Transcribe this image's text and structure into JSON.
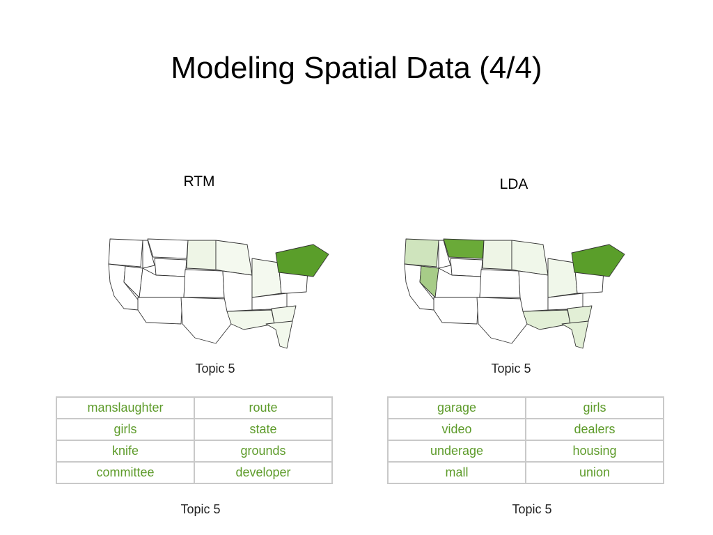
{
  "slide": {
    "title": "Modeling Spatial Data (4/4)"
  },
  "panels": [
    {
      "label": "RTM",
      "map_caption": "Topic 5",
      "table_caption": "Topic 5",
      "words": [
        [
          "manslaughter",
          "route"
        ],
        [
          "girls",
          "state"
        ],
        [
          "knife",
          "grounds"
        ],
        [
          "committee",
          "developer"
        ]
      ],
      "shading": {
        "northeast": "#5a9e2a",
        "pacific_nw": "#ffffff",
        "mountain_n": "#ffffff",
        "dakotas": "#eef5e6",
        "nevada": "#ffffff",
        "southeast": "#f2f8ec",
        "great_lakes": "#f4f9ef"
      }
    },
    {
      "label": "LDA",
      "map_caption": "Topic 5",
      "table_caption": "Topic 5",
      "words": [
        [
          "garage",
          "girls"
        ],
        [
          "video",
          "dealers"
        ],
        [
          "underage",
          "housing"
        ],
        [
          "mall",
          "union"
        ]
      ],
      "shading": {
        "northeast": "#5a9e2a",
        "pacific_nw": "#cfe4bd",
        "mountain_n": "#6aaa38",
        "dakotas": "#eef5e6",
        "nevada": "#a7cc88",
        "southeast": "#e2efd6",
        "great_lakes": "#f0f7ea"
      }
    }
  ],
  "colors": {
    "word_text": "#5d9b2a",
    "table_border": "#c9c9c9",
    "map_border": "#333333"
  }
}
